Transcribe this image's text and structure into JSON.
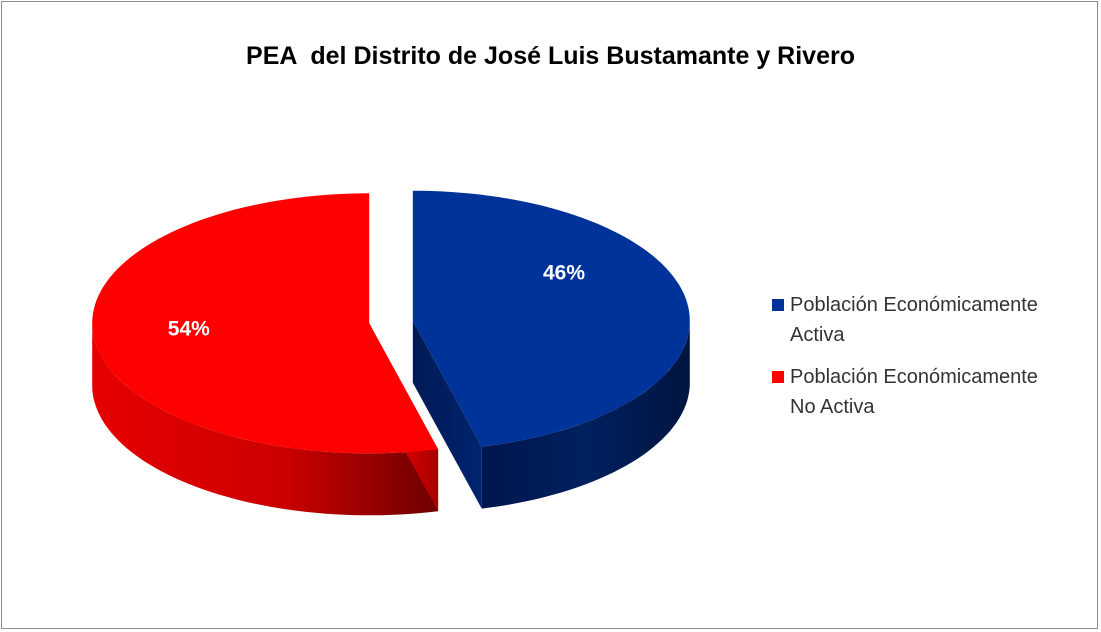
{
  "chart_data": {
    "type": "pie",
    "title": "PEA  del Distrito de José Luis Bustamante y Rivero",
    "slices": [
      {
        "name": "Población Económicamente Activa",
        "legend_lines": [
          "Población Económicamente",
          "Activa"
        ],
        "value": 46,
        "label": "46%",
        "color": "#003399"
      },
      {
        "name": "Población Económicamente No Activa",
        "legend_lines": [
          "Población Económicamente",
          "No Activa"
        ],
        "value": 54,
        "label": "54%",
        "color": "#ff0000"
      }
    ],
    "legend_position": "right",
    "style": "3d-exploded"
  }
}
